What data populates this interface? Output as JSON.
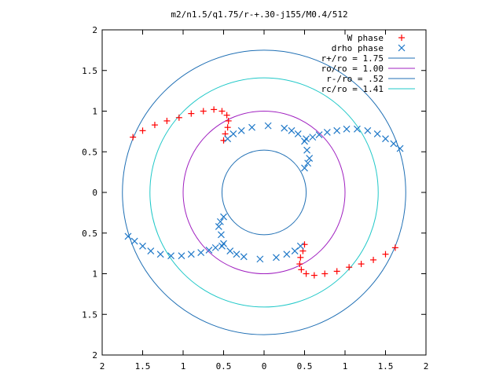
{
  "chart_data": {
    "type": "scatter",
    "title": "m2/n1.5/q1.75/r-+.30-j155/M0.4/512",
    "xlim": [
      -2,
      2
    ],
    "ylim": [
      -2,
      2
    ],
    "grid": false,
    "legend_position": "top-right",
    "x_tick_labels": [
      "2",
      "1.5",
      "1",
      "0.5",
      "0",
      "0.5",
      "1",
      "1.5",
      "2"
    ],
    "y_tick_labels": [
      "2",
      "1.5",
      "1",
      "0.5",
      "0",
      "0.5",
      "1",
      "1.5",
      "2"
    ],
    "circles": [
      {
        "name": "r+/ro = 1.75",
        "radius": 1.75,
        "color": "#1f6fb4"
      },
      {
        "name": "ro/ro = 1.00",
        "radius": 1.0,
        "color": "#a020c0"
      },
      {
        "name": "r-/ro = .52",
        "radius": 0.52,
        "color": "#1f6fb4"
      },
      {
        "name": "rc/ro = 1.41",
        "radius": 1.41,
        "color": "#20c8c8"
      }
    ],
    "series": [
      {
        "name": "W phase",
        "marker": "+",
        "color": "#ff0000",
        "x": [
          -1.62,
          -1.5,
          -1.35,
          -1.2,
          -1.05,
          -0.9,
          -0.75,
          -0.62,
          -0.52,
          -0.46,
          -0.44,
          -0.45,
          -0.48,
          -0.5,
          1.62,
          1.5,
          1.35,
          1.2,
          1.05,
          0.9,
          0.75,
          0.62,
          0.52,
          0.46,
          0.44,
          0.45,
          0.48,
          0.5
        ],
        "y": [
          0.68,
          0.76,
          0.83,
          0.88,
          0.92,
          0.97,
          1.0,
          1.02,
          1.0,
          0.95,
          0.88,
          0.8,
          0.72,
          0.64,
          -0.68,
          -0.76,
          -0.83,
          -0.88,
          -0.92,
          -0.97,
          -1.0,
          -1.02,
          -1.0,
          -0.95,
          -0.88,
          -0.8,
          -0.72,
          -0.64
        ]
      },
      {
        "name": "drho phase",
        "marker": "x",
        "color": "#1f78c8",
        "x": [
          -1.68,
          -1.6,
          -1.5,
          -1.4,
          -1.28,
          -1.15,
          -1.02,
          -0.9,
          -0.78,
          -0.68,
          -0.6,
          -0.52,
          -0.5,
          -0.53,
          -0.56,
          -0.54,
          -0.5,
          -0.45,
          -0.38,
          -0.28,
          -0.15,
          0.05,
          0.25,
          0.34,
          0.42,
          1.68,
          1.6,
          1.5,
          1.4,
          1.28,
          1.15,
          1.02,
          0.9,
          0.78,
          0.68,
          0.6,
          0.52,
          0.5,
          0.53,
          0.56,
          0.54,
          0.5,
          0.45,
          0.38,
          0.28,
          0.15,
          -0.05,
          -0.25,
          -0.34,
          -0.42
        ],
        "y": [
          -0.54,
          -0.6,
          -0.66,
          -0.72,
          -0.76,
          -0.78,
          -0.78,
          -0.76,
          -0.74,
          -0.71,
          -0.68,
          -0.66,
          -0.63,
          -0.52,
          -0.42,
          -0.36,
          -0.3,
          0.66,
          0.72,
          0.76,
          0.8,
          0.82,
          0.79,
          0.76,
          0.72,
          0.54,
          0.6,
          0.66,
          0.72,
          0.76,
          0.78,
          0.78,
          0.76,
          0.74,
          0.71,
          0.68,
          0.66,
          0.63,
          0.52,
          0.42,
          0.36,
          0.3,
          -0.66,
          -0.72,
          -0.76,
          -0.8,
          -0.82,
          -0.79,
          -0.76,
          -0.72
        ]
      }
    ]
  }
}
